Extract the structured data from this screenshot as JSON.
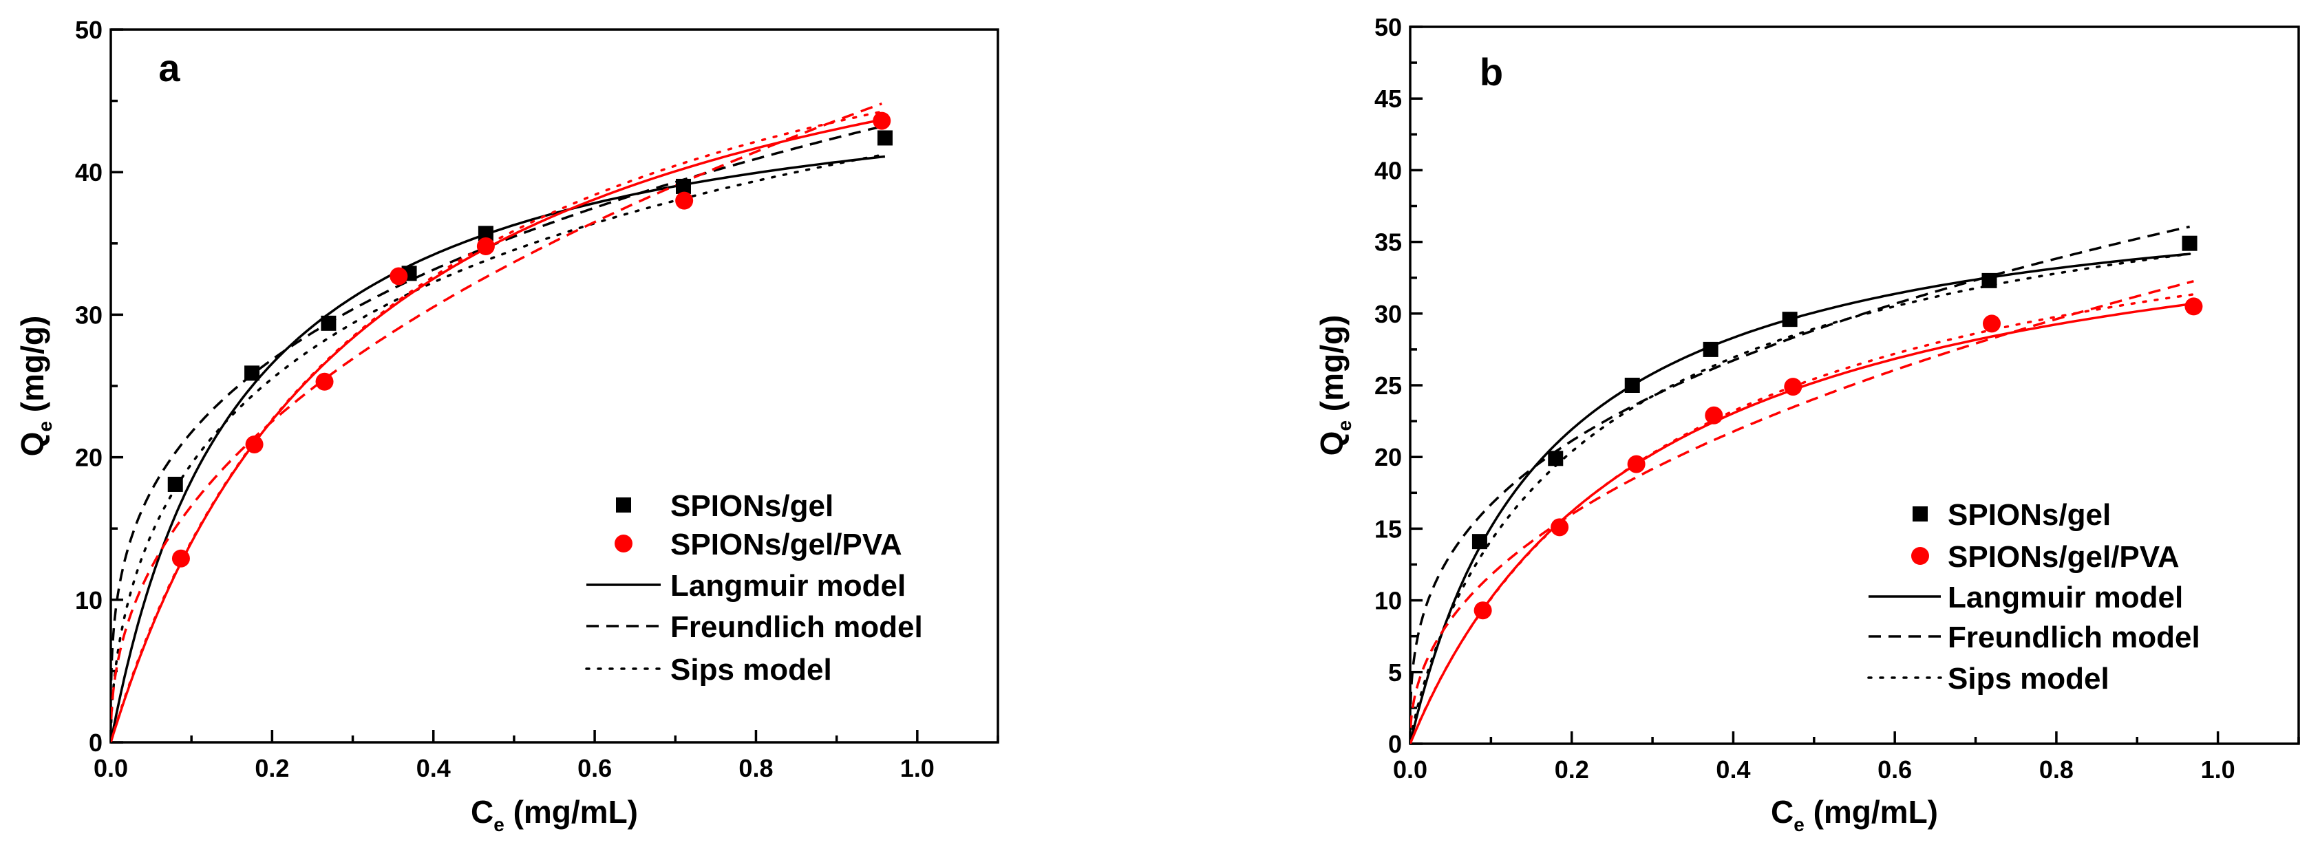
{
  "colors": {
    "gel": "#000000",
    "pva": "#ff0000",
    "axis": "#000000"
  },
  "chart_data": [
    {
      "type": "scatter",
      "panel_label": "a",
      "xlabel": "C",
      "xlabel_sub": "e",
      "xlabel_unit": " (mg/mL)",
      "ylabel": "Q",
      "ylabel_sub": "e",
      "ylabel_unit": " (mg/g)",
      "xlim": [
        0,
        1.1
      ],
      "ylim": [
        0,
        50
      ],
      "xticks": [
        "0.0",
        "0.2",
        "0.4",
        "0.6",
        "0.8",
        "1.0"
      ],
      "xtick_values": [
        0,
        0.2,
        0.4,
        0.6,
        0.8,
        1.0
      ],
      "yticks": [
        "0",
        "10",
        "20",
        "30",
        "40",
        "50"
      ],
      "ytick_values": [
        0,
        10,
        20,
        30,
        40,
        50
      ],
      "grid": false,
      "legend_position": "bottom-right",
      "legend": [
        "SPIONs/gel",
        "SPIONs/gel/PVA",
        "Langmuir model",
        "Freundlich model",
        "Sips model"
      ],
      "series": [
        {
          "name": "SPIONs/gel",
          "marker": "square",
          "x": [
            0.08,
            0.175,
            0.27,
            0.37,
            0.465,
            0.71,
            0.96
          ],
          "y": [
            18.1,
            25.9,
            29.4,
            32.9,
            35.7,
            39.0,
            42.4
          ]
        },
        {
          "name": "SPIONs/gel/PVA",
          "marker": "circle",
          "x": [
            0.087,
            0.178,
            0.265,
            0.357,
            0.465,
            0.711,
            0.956
          ],
          "y": [
            12.9,
            20.9,
            25.3,
            32.7,
            34.8,
            38.0,
            43.6
          ]
        }
      ],
      "fits": {
        "SPIONs/gel": {
          "xmax": 0.96,
          "langmuir": {
            "qm": 48,
            "K": 6.2
          },
          "freundlich": {
            "Kf": 43.8,
            "n_inv": 0.304
          },
          "sips": {
            "qm": 75,
            "K": 1.5,
            "n": 0.55
          }
        },
        "SPIONs/gel/PVA": {
          "xmax": 0.956,
          "langmuir": {
            "qm": 58,
            "K": 3.19
          },
          "freundlich": {
            "Kf": 45.7,
            "n_inv": 0.44
          },
          "sips": {
            "qm": 60,
            "K": 3.0,
            "n": 0.98
          }
        }
      }
    },
    {
      "type": "scatter",
      "panel_label": "b",
      "xlabel": "C",
      "xlabel_sub": "e",
      "xlabel_unit": " (mg/mL)",
      "ylabel": "Q",
      "ylabel_sub": "e",
      "ylabel_unit": " (mg/g)",
      "xlim": [
        0,
        1.1
      ],
      "ylim": [
        0,
        50
      ],
      "xticks": [
        "0.0",
        "0.2",
        "0.4",
        "0.6",
        "0.8",
        "1.0"
      ],
      "xtick_values": [
        0,
        0.2,
        0.4,
        0.6,
        0.8,
        1.0
      ],
      "yticks": [
        "0",
        "5",
        "10",
        "15",
        "20",
        "25",
        "30",
        "35",
        "40",
        "45",
        "50"
      ],
      "ytick_values": [
        0,
        5,
        10,
        15,
        20,
        25,
        30,
        35,
        40,
        45,
        50
      ],
      "grid": false,
      "legend_position": "bottom-right",
      "legend": [
        "SPIONs/gel",
        "SPIONs/gel/PVA",
        "Langmuir model",
        "Freundlich model",
        "Sips model"
      ],
      "series": [
        {
          "name": "SPIONs/gel",
          "marker": "square",
          "x": [
            0.086,
            0.18,
            0.275,
            0.372,
            0.47,
            0.717,
            0.965
          ],
          "y": [
            14.1,
            19.9,
            25.0,
            27.5,
            29.6,
            32.3,
            34.9
          ]
        },
        {
          "name": "SPIONs/gel/PVA",
          "marker": "circle",
          "x": [
            0.09,
            0.185,
            0.28,
            0.376,
            0.474,
            0.72,
            0.97
          ],
          "y": [
            9.3,
            15.1,
            19.5,
            22.9,
            24.9,
            29.3,
            30.5
          ]
        }
      ],
      "fits": {
        "SPIONs/gel": {
          "xmax": 0.965,
          "langmuir": {
            "qm": 40,
            "K": 6.06
          },
          "freundlich": {
            "Kf": 36.5,
            "n_inv": 0.34
          },
          "sips": {
            "qm": 45,
            "K": 4.0,
            "n": 0.85
          }
        },
        "SPIONs/gel/PVA": {
          "xmax": 0.97,
          "langmuir": {
            "qm": 40,
            "K": 3.4
          },
          "freundlich": {
            "Kf": 32.7,
            "n_inv": 0.444
          },
          "sips": {
            "qm": 42,
            "K": 3.1,
            "n": 0.98
          }
        }
      }
    }
  ]
}
